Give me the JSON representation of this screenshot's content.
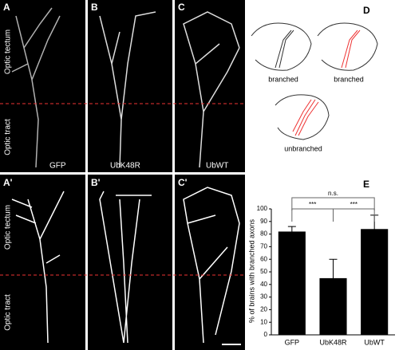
{
  "figure": {
    "panel_labels": [
      "A",
      "B",
      "C",
      "A'",
      "B'",
      "C'",
      "D",
      "E"
    ],
    "region_labels": [
      "Optic tectum",
      "Optic tract"
    ],
    "markers": [
      "GFP",
      "UbK48R",
      "UbWT"
    ],
    "diagram_labels": [
      "branched",
      "branched",
      "unbranched"
    ]
  },
  "chart_data": {
    "type": "bar",
    "ylabel": "% of brains with branched axons",
    "categories": [
      "GFP",
      "UbK48R",
      "UbWT"
    ],
    "values": [
      82,
      45,
      84
    ],
    "errors": [
      4,
      15,
      11
    ],
    "color": "#000000",
    "ylim": [
      0,
      100
    ],
    "yticks": [
      0,
      10,
      20,
      30,
      40,
      50,
      60,
      70,
      80,
      90,
      100
    ],
    "annotations": [
      "***",
      "***",
      "n.s."
    ]
  }
}
